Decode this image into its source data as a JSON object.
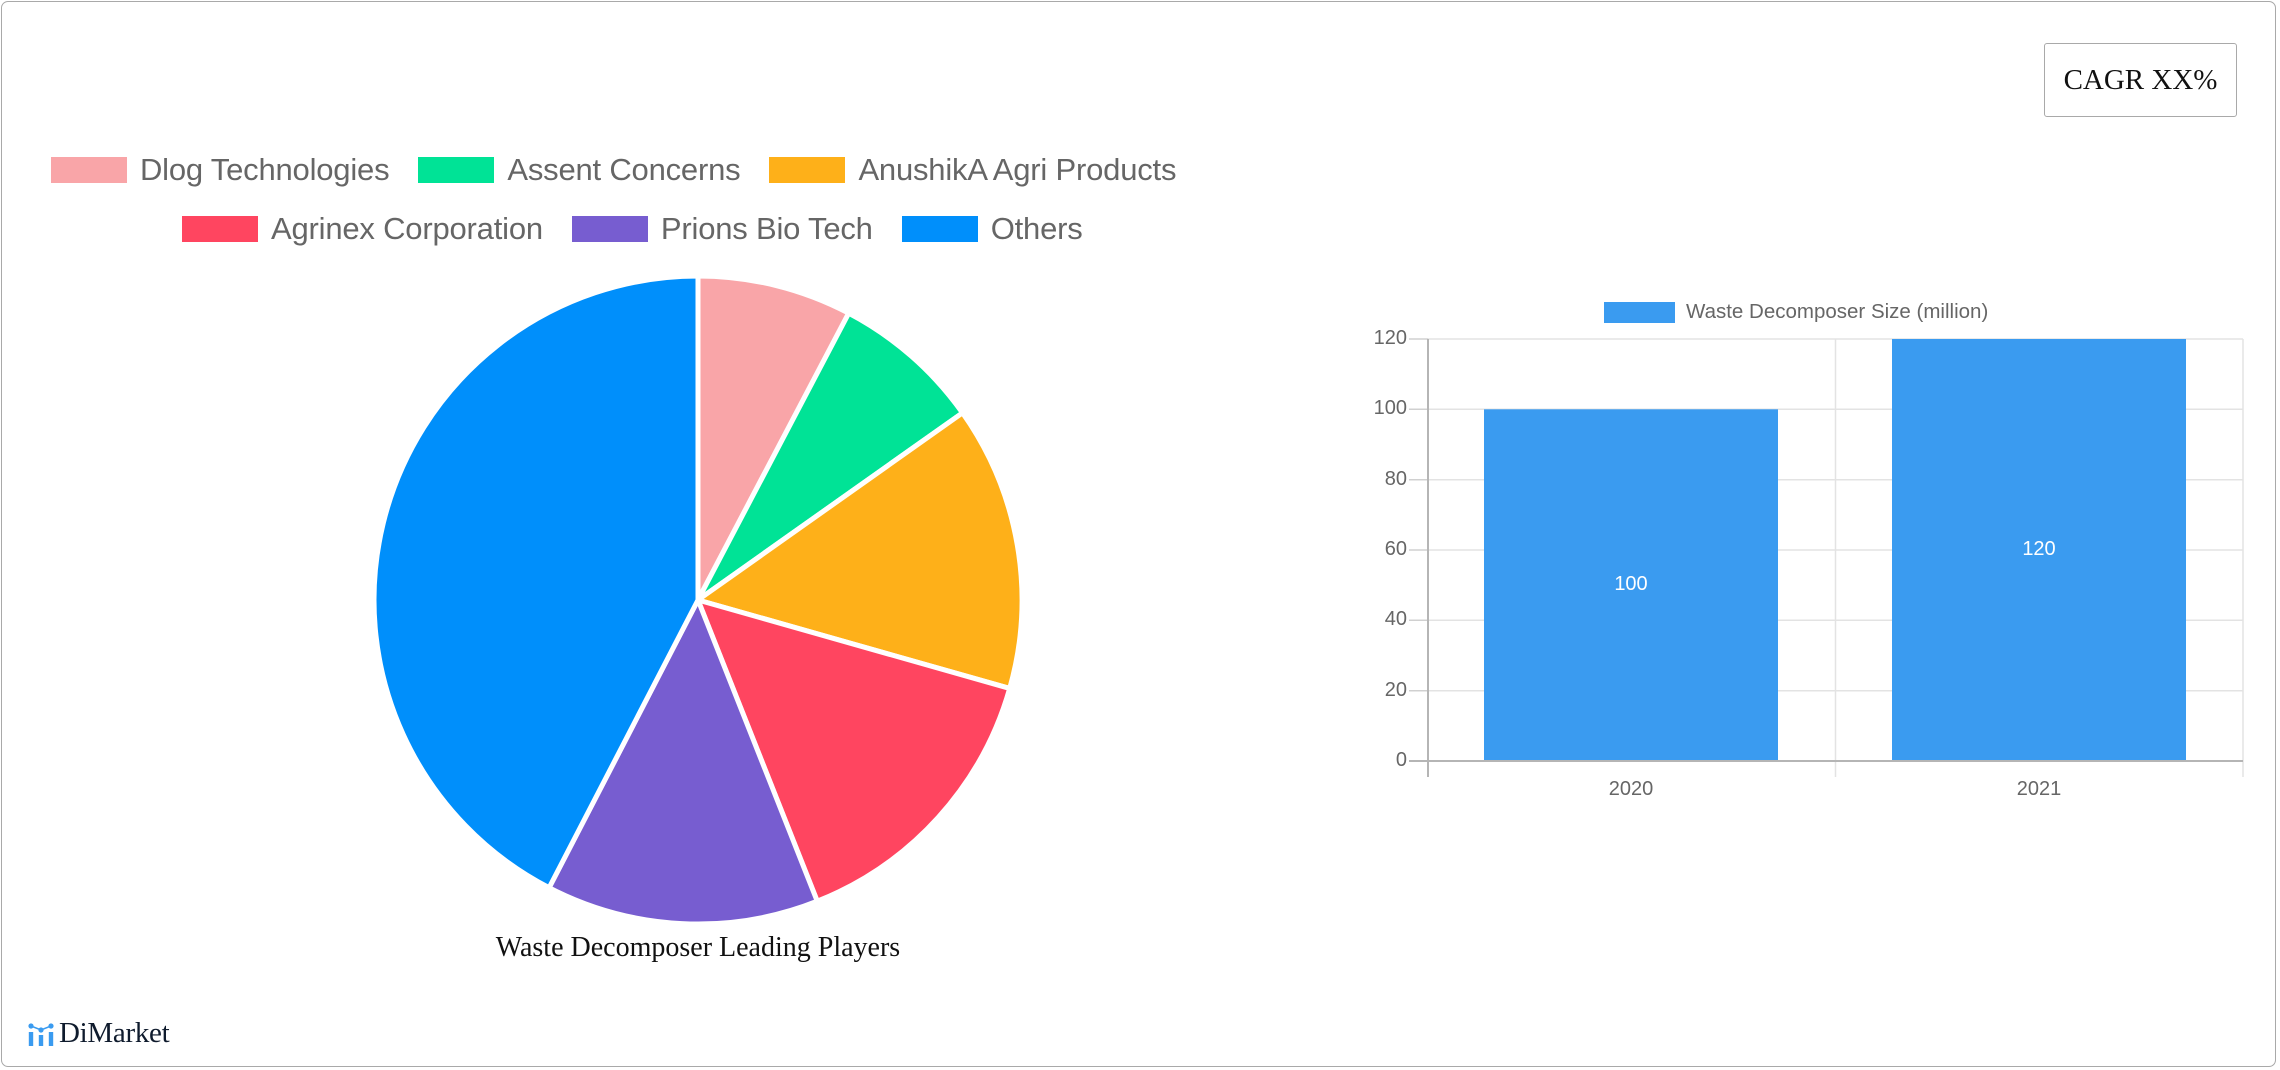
{
  "cagr_badge": {
    "label": "CAGR XX%"
  },
  "pie_legend": {
    "row1": [
      {
        "label": "Dlog Technologies",
        "color": "#f9a5a8"
      },
      {
        "label": "Assent Concerns",
        "color": "#00e396"
      },
      {
        "label": "AnushikA Agri Products",
        "color": "#feb019"
      }
    ],
    "row2": [
      {
        "label": "Agrinex Corporation",
        "color": "#ff4560"
      },
      {
        "label": "Prions Bio Tech",
        "color": "#775dd0"
      },
      {
        "label": "Others",
        "color": "#008ffb"
      }
    ]
  },
  "pie_title": "Waste Decomposer Leading Players",
  "bar_legend": {
    "label": "Waste Decomposer Size (million)",
    "color": "#3a9bf0"
  },
  "bar_axis": {
    "y_ticks": [
      "0",
      "20",
      "40",
      "60",
      "80",
      "100",
      "120"
    ],
    "x_ticks": [
      "2020",
      "2021"
    ]
  },
  "bar_values": {
    "v2020": "100",
    "v2021": "120"
  },
  "logo": {
    "text": "DiMarket",
    "icon": "bar-chart-logo-icon"
  },
  "chart_data": [
    {
      "type": "pie",
      "title": "Waste Decomposer Leading Players",
      "categories": [
        "Dlog Technologies",
        "Assent Concerns",
        "AnushikA Agri Products",
        "Agrinex Corporation",
        "Prions Bio Tech",
        "Others"
      ],
      "values": [
        7.7,
        7.5,
        14.2,
        14.6,
        13.6,
        42.4
      ],
      "colors": [
        "#f9a5a8",
        "#00e396",
        "#feb019",
        "#ff4560",
        "#775dd0",
        "#008ffb"
      ],
      "unit": "% share (estimated from slice angles)",
      "legend_position": "top"
    },
    {
      "type": "bar",
      "title": "",
      "categories": [
        "2020",
        "2021"
      ],
      "series": [
        {
          "name": "Waste Decomposer Size (million)",
          "values": [
            100,
            120
          ]
        }
      ],
      "xlabel": "",
      "ylabel": "",
      "ylim": [
        0,
        120
      ],
      "y_ticks": [
        0,
        20,
        40,
        60,
        80,
        100,
        120
      ],
      "grid": true,
      "data_labels": true,
      "legend_position": "top"
    }
  ]
}
